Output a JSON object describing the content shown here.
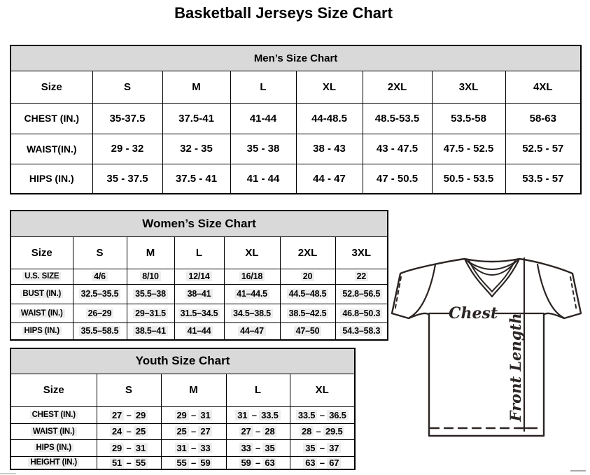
{
  "page": {
    "title": "Basketball Jerseys Size Chart"
  },
  "mens": {
    "title": "Men’s Size Chart",
    "columns": [
      "Size",
      "S",
      "M",
      "L",
      "XL",
      "2XL",
      "3XL",
      "4XL"
    ],
    "rows": [
      {
        "label": "CHEST (IN.)",
        "values": [
          "35-37.5",
          "37.5-41",
          "41-44",
          "44-48.5",
          "48.5-53.5",
          "53.5-58",
          "58-63"
        ]
      },
      {
        "label": "WAIST(IN.)",
        "values": [
          "29 - 32",
          "32 - 35",
          "35 - 38",
          "38 - 43",
          "43 - 47.5",
          "47.5 - 52.5",
          "52.5 - 57"
        ]
      },
      {
        "label": "HIPS (IN.)",
        "values": [
          "35 - 37.5",
          "37.5 - 41",
          "41 - 44",
          "44 - 47",
          "47 - 50.5",
          "50.5 - 53.5",
          "53.5 - 57"
        ]
      }
    ]
  },
  "womens": {
    "title": "Women’s Size Chart",
    "columns": [
      "Size",
      "S",
      "M",
      "L",
      "XL",
      "2XL",
      "3XL"
    ],
    "rows": [
      {
        "label": "U.S. SIZE",
        "values": [
          "4/6",
          "8/10",
          "12/14",
          "16/18",
          "20",
          "22"
        ]
      },
      {
        "label": "BUST (IN.)",
        "values": [
          "32.5–35.5",
          "35.5–38",
          "38–41",
          "41–44.5",
          "44.5–48.5",
          "52.8–56.5"
        ]
      },
      {
        "label": "WAIST (IN.)",
        "values": [
          "26–29",
          "29–31.5",
          "31.5–34.5",
          "34.5–38.5",
          "38.5–42.5",
          "46.8–50.3"
        ]
      },
      {
        "label": "HIPS (IN.)",
        "values": [
          "35.5–58.5",
          "38.5–41",
          "41–44",
          "44–47",
          "47–50",
          "54.3–58.3"
        ]
      }
    ]
  },
  "youth": {
    "title": "Youth Size Chart",
    "columns": [
      "Size",
      "S",
      "M",
      "L",
      "XL"
    ],
    "rows": [
      {
        "label": "CHEST (IN.)",
        "values": [
          "27 – 29",
          "29 – 31",
          "31 – 33.5",
          "33.5 – 36.5"
        ]
      },
      {
        "label": "WAIST (IN.)",
        "values": [
          "24 – 25",
          "25 – 27",
          "27 – 28",
          "28 – 29.5"
        ]
      },
      {
        "label": "HIPS (IN.)",
        "values": [
          "29 – 31",
          "31 – 33",
          "33 – 35",
          "35 – 37"
        ]
      },
      {
        "label": "HEIGHT (IN.)",
        "values": [
          "51 – 55",
          "55 – 59",
          "59 – 63",
          "63 – 67"
        ]
      }
    ]
  },
  "diagram": {
    "chest_label": "Chest",
    "front_length_label": "Front Length"
  },
  "colors": {
    "header_band": "#d9d9d9",
    "table_border": "#000000",
    "line_art": "#2b2523",
    "value_highlight": "#ededed"
  }
}
